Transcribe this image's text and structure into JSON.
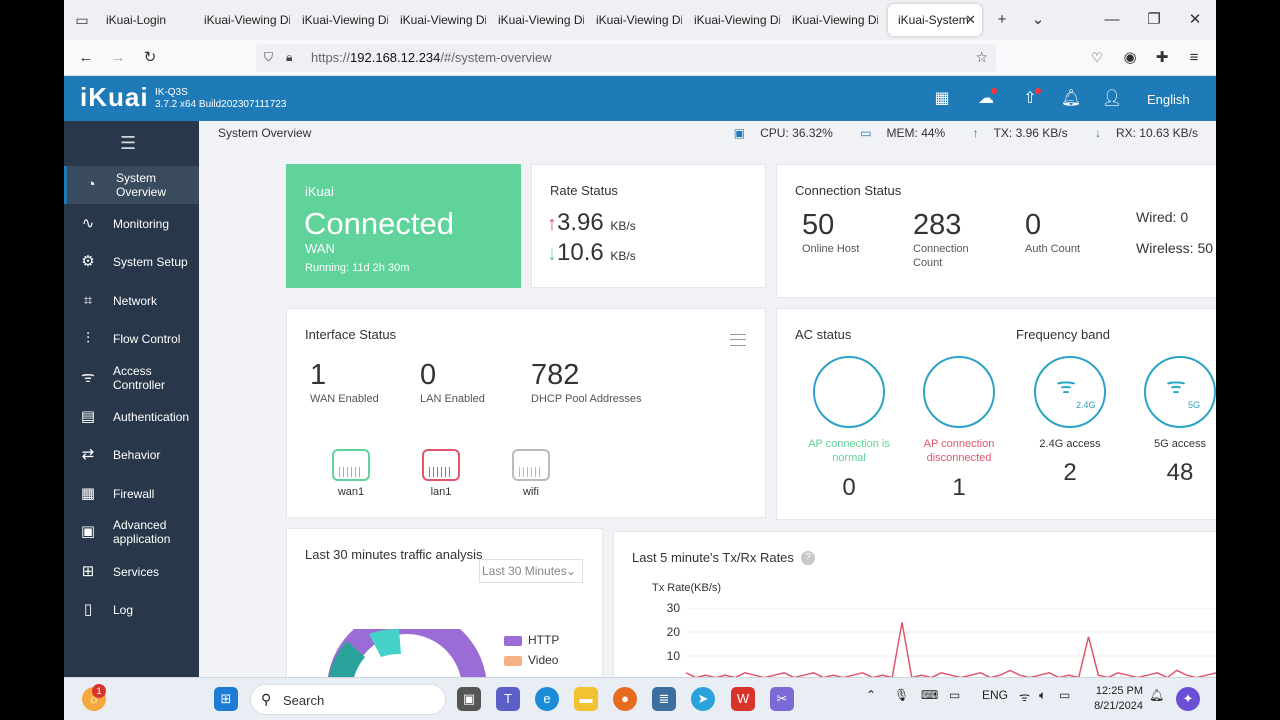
{
  "browser": {
    "tabs": [
      {
        "label": "iKuai-Login",
        "active": false
      },
      {
        "label": "iKuai-Viewing Di",
        "active": false
      },
      {
        "label": "iKuai-Viewing Di",
        "active": false
      },
      {
        "label": "iKuai-Viewing Di",
        "active": false
      },
      {
        "label": "iKuai-Viewing Di",
        "active": false
      },
      {
        "label": "iKuai-Viewing Di",
        "active": false
      },
      {
        "label": "iKuai-Viewing Di",
        "active": false
      },
      {
        "label": "iKuai-Viewing Di",
        "active": false
      },
      {
        "label": "iKuai-System",
        "active": true
      }
    ],
    "url_prefix": "https://",
    "url_host": "192.168.12.234",
    "url_path": "/#/system-overview"
  },
  "header": {
    "logo": "iKuai",
    "model": "IK-Q3S",
    "version": "3.7.2 x64 Build202307111723",
    "language": "English"
  },
  "sidebar": {
    "items": [
      {
        "label": "System Overview",
        "icon": "dashboard-icon",
        "active": true
      },
      {
        "label": "Monitoring",
        "icon": "monitor-icon",
        "active": false
      },
      {
        "label": "System Setup",
        "icon": "gear-icon",
        "active": false
      },
      {
        "label": "Network",
        "icon": "network-icon",
        "active": false
      },
      {
        "label": "Flow Control",
        "icon": "sliders-icon",
        "active": false
      },
      {
        "label": "Access Controller",
        "icon": "wifi-icon",
        "active": false
      },
      {
        "label": "Authentication",
        "icon": "id-card-icon",
        "active": false
      },
      {
        "label": "Behavior",
        "icon": "arrows-icon",
        "active": false
      },
      {
        "label": "Firewall",
        "icon": "firewall-icon",
        "active": false
      },
      {
        "label": "Advanced application",
        "icon": "app-icon",
        "active": false
      },
      {
        "label": "Services",
        "icon": "grid-icon",
        "active": false
      },
      {
        "label": "Log",
        "icon": "log-icon",
        "active": false
      }
    ]
  },
  "topstats": {
    "breadcrumb": "System Overview",
    "cpu": "CPU: 36.32%",
    "mem": "MEM: 44%",
    "tx": "TX: 3.96 KB/s",
    "rx": "RX: 10.63 KB/s"
  },
  "connected_card": {
    "brand": "iKuai",
    "status": "Connected",
    "wan": "WAN",
    "running": "Running: 11d 2h 30m"
  },
  "rate_status": {
    "title": "Rate Status",
    "up_value": "3.96",
    "up_unit": "KB/s",
    "down_value": "10.6",
    "down_unit": "KB/s"
  },
  "connection_status": {
    "title": "Connection Status",
    "online_host": {
      "value": "50",
      "label": "Online Host"
    },
    "connection_count": {
      "value": "283",
      "label": "Connection Count"
    },
    "auth_count": {
      "value": "0",
      "label": "Auth Count"
    },
    "wired": "Wired: 0",
    "wireless": "Wireless: 50"
  },
  "interface_status": {
    "title": "Interface Status",
    "wan_enabled": {
      "value": "1",
      "label": "WAN Enabled"
    },
    "lan_enabled": {
      "value": "0",
      "label": "LAN Enabled"
    },
    "dhcp_pool": {
      "value": "782",
      "label": "DHCP Pool Addresses"
    },
    "ports": [
      {
        "label": "wan1",
        "color": "#5fd39a"
      },
      {
        "label": "lan1",
        "color": "#e0576b"
      },
      {
        "label": "wifi",
        "color": "#bbbbbb"
      }
    ]
  },
  "ac_status": {
    "title": "AC status",
    "freq_title": "Frequency band",
    "normal": {
      "label": "AP connection is normal",
      "value": "0",
      "color": "#5fd39a"
    },
    "disconnected": {
      "label": "AP connection disconnected",
      "value": "1",
      "color": "#e0576b"
    },
    "band24": {
      "label": "2.4G access",
      "value": "2",
      "badge": "2.4G"
    },
    "band5": {
      "label": "5G access",
      "value": "48",
      "badge": "5G"
    }
  },
  "traffic_analysis": {
    "title": "Last 30 minutes traffic analysis",
    "select_value": "Last 30 Minutes",
    "legend": [
      {
        "label": "HTTP",
        "color": "#9b6bd6"
      },
      {
        "label": "Video",
        "color": "#f4b183"
      }
    ]
  },
  "txrx": {
    "title": "Last 5 minute's Tx/Rx Rates",
    "ylabel": "Tx Rate(KB/s)",
    "ticks": [
      "30",
      "20",
      "10"
    ]
  },
  "chart_data": {
    "type": "line",
    "title": "Last 5 minute's Tx/Rx Rates",
    "ylabel": "Tx Rate(KB/s)",
    "ylim": [
      0,
      30
    ],
    "series": [
      {
        "values": [
          3,
          1,
          2,
          1,
          2,
          1,
          3,
          2,
          1,
          2,
          3,
          1,
          2,
          3,
          1,
          2,
          1,
          2,
          3,
          1,
          2,
          1,
          24,
          1,
          2,
          1,
          3,
          2,
          1,
          2,
          3,
          1,
          2,
          4,
          2,
          1,
          2,
          3,
          1,
          2,
          1,
          18,
          2,
          1,
          3,
          2,
          1,
          2,
          3,
          1,
          4,
          2,
          1,
          2,
          3,
          4
        ]
      }
    ],
    "color": "#e0576b"
  },
  "taskbar": {
    "search": "Search",
    "lang": "ENG",
    "time": "12:25 PM",
    "date": "8/21/2024",
    "notif_badge": "1"
  }
}
